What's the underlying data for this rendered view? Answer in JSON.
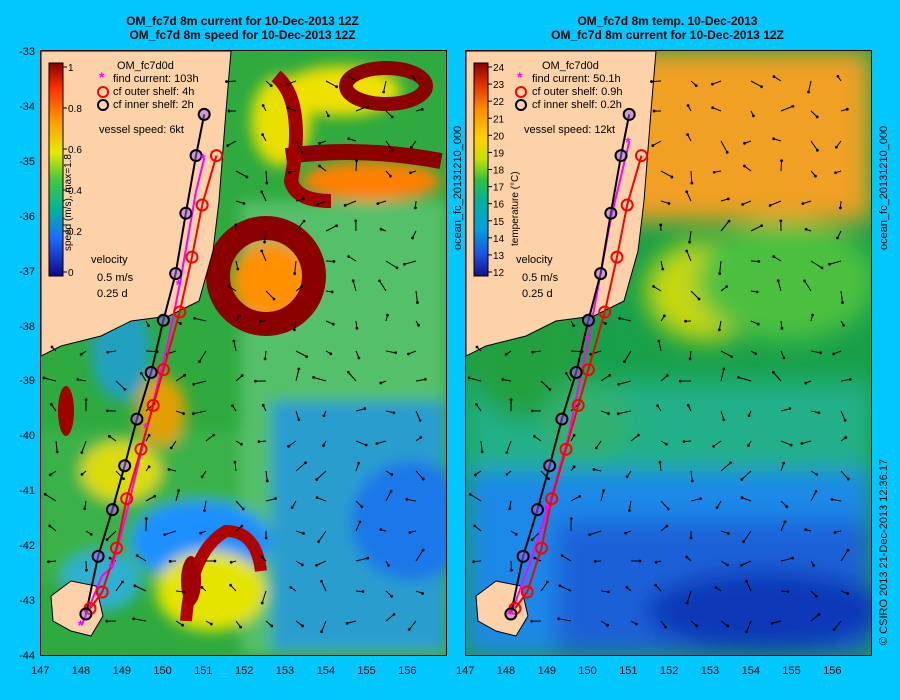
{
  "left": {
    "title1": "OM_fc7d 8m current for 10-Dec-2013 12Z",
    "title2": "OM_fc7d 8m speed for 10-Dec-2013 12Z",
    "run": "OM_fc7d0d",
    "legend": [
      "find current: 103h",
      "cf outer shelf: 4h",
      "cf inner shelf: 2h"
    ],
    "vessel": "vessel speed: 6kt",
    "cbar_label": "speed (m/s),  max=1.8",
    "cbar_ticks": [
      "1",
      "0.8",
      "0.6",
      "0.4",
      "0.2",
      "0"
    ],
    "velocity": [
      "velocity",
      "0.5 m/s",
      "0.25 d"
    ]
  },
  "right": {
    "title1": "OM_fc7d 8m temp. 10-Dec-2013",
    "title2": "OM_fc7d 8m current for 10-Dec-2013 12Z",
    "run": "OM_fc7d0d",
    "legend": [
      "find current: 50.1h",
      "cf outer shelf: 0.9h",
      "cf inner shelf: 0.2h"
    ],
    "vessel": "vessel speed: 12kt",
    "cbar_label": "temperature (°C)",
    "cbar_ticks": [
      "24",
      "23",
      "22",
      "21",
      "20",
      "19",
      "18",
      "17",
      "16",
      "15",
      "14",
      "13",
      "12"
    ],
    "velocity": [
      "velocity",
      "0.5 m/s",
      "0.25 d"
    ]
  },
  "axes": {
    "x_ticks": [
      "147",
      "148",
      "149",
      "150",
      "151",
      "152",
      "153",
      "154",
      "155",
      "156"
    ],
    "y_ticks": [
      "-33",
      "-34",
      "-35",
      "-36",
      "-37",
      "-38",
      "-39",
      "-40",
      "-41",
      "-42",
      "-43",
      "-44"
    ]
  },
  "side_text": {
    "left_file": "ocean_fc_20131210_000",
    "right_file": "ocean_fc_20131210_000",
    "credit": "© CSIRO 2013   21-Dec-2013 12:36:17"
  },
  "colors": {
    "background": "#00c8ff",
    "land": "#fdd2a8",
    "find_current": "#ff00ff",
    "outer_shelf": "#ff0000",
    "inner_shelf": "#000000"
  },
  "routes": {
    "inner_shelf": [
      [
        148.1,
        -43.2
      ],
      [
        148.4,
        -42.15
      ],
      [
        148.75,
        -41.3
      ],
      [
        149.05,
        -40.5
      ],
      [
        149.35,
        -39.65
      ],
      [
        149.7,
        -38.8
      ],
      [
        150.0,
        -37.85
      ],
      [
        150.3,
        -37.0
      ],
      [
        150.55,
        -35.9
      ],
      [
        150.8,
        -34.85
      ],
      [
        151.0,
        -34.1
      ]
    ],
    "outer_shelf": [
      [
        148.2,
        -43.1
      ],
      [
        148.5,
        -42.8
      ],
      [
        148.85,
        -42.0
      ],
      [
        149.1,
        -41.1
      ],
      [
        149.45,
        -40.2
      ],
      [
        149.75,
        -39.4
      ],
      [
        150.0,
        -38.75
      ],
      [
        150.4,
        -37.7
      ],
      [
        150.7,
        -36.7
      ],
      [
        150.95,
        -35.75
      ],
      [
        151.3,
        -34.85
      ]
    ],
    "find_current_left": [
      [
        148.0,
        -43.4
      ],
      [
        148.5,
        -42.5
      ],
      [
        148.75,
        -42.35
      ],
      [
        149.1,
        -41.35
      ],
      [
        149.6,
        -39.8
      ],
      [
        150.1,
        -38.3
      ],
      [
        150.4,
        -37.2
      ],
      [
        150.8,
        -35.5
      ],
      [
        151.0,
        -34.9
      ]
    ],
    "find_current_right": [
      [
        148.1,
        -43.2
      ],
      [
        148.55,
        -42.3
      ],
      [
        149.0,
        -41.3
      ],
      [
        149.5,
        -40.0
      ],
      [
        150.0,
        -38.2
      ],
      [
        150.55,
        -36.0
      ],
      [
        151.0,
        -34.6
      ]
    ]
  }
}
